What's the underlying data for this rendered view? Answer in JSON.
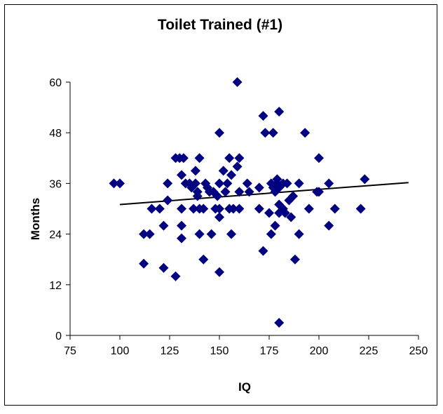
{
  "chart_data": {
    "type": "scatter",
    "title": "Toilet Trained (#1)",
    "xlabel": "IQ",
    "ylabel": "Months",
    "xlim": [
      75,
      250
    ],
    "ylim": [
      0,
      60
    ],
    "xticks": [
      75,
      100,
      125,
      150,
      175,
      200,
      225,
      250
    ],
    "yticks": [
      0,
      12,
      24,
      36,
      48,
      60
    ],
    "grid": false,
    "legend": "none",
    "marker": "diamond",
    "marker_color": "#000080",
    "trendline": {
      "type": "linear",
      "x": [
        100,
        245
      ],
      "y": [
        31,
        36.2
      ],
      "color": "#000000"
    },
    "points": [
      {
        "x": 97,
        "y": 36
      },
      {
        "x": 100,
        "y": 36
      },
      {
        "x": 112,
        "y": 24
      },
      {
        "x": 112,
        "y": 17
      },
      {
        "x": 115,
        "y": 24
      },
      {
        "x": 116,
        "y": 30
      },
      {
        "x": 120,
        "y": 30
      },
      {
        "x": 122,
        "y": 26
      },
      {
        "x": 122,
        "y": 16
      },
      {
        "x": 124,
        "y": 32
      },
      {
        "x": 124,
        "y": 36
      },
      {
        "x": 128,
        "y": 42
      },
      {
        "x": 128,
        "y": 14
      },
      {
        "x": 130,
        "y": 42
      },
      {
        "x": 131,
        "y": 38
      },
      {
        "x": 131,
        "y": 30
      },
      {
        "x": 131,
        "y": 26
      },
      {
        "x": 131,
        "y": 23
      },
      {
        "x": 132,
        "y": 42
      },
      {
        "x": 133,
        "y": 36
      },
      {
        "x": 135,
        "y": 36
      },
      {
        "x": 136,
        "y": 35
      },
      {
        "x": 137,
        "y": 30
      },
      {
        "x": 138,
        "y": 39
      },
      {
        "x": 138,
        "y": 36
      },
      {
        "x": 139,
        "y": 34
      },
      {
        "x": 139,
        "y": 33
      },
      {
        "x": 140,
        "y": 42
      },
      {
        "x": 140,
        "y": 30
      },
      {
        "x": 140,
        "y": 24
      },
      {
        "x": 142,
        "y": 30
      },
      {
        "x": 142,
        "y": 18
      },
      {
        "x": 143,
        "y": 36
      },
      {
        "x": 144,
        "y": 35
      },
      {
        "x": 145,
        "y": 34
      },
      {
        "x": 146,
        "y": 24
      },
      {
        "x": 147,
        "y": 34
      },
      {
        "x": 148,
        "y": 30
      },
      {
        "x": 149,
        "y": 33
      },
      {
        "x": 150,
        "y": 48
      },
      {
        "x": 150,
        "y": 36
      },
      {
        "x": 150,
        "y": 30
      },
      {
        "x": 150,
        "y": 28
      },
      {
        "x": 150,
        "y": 15
      },
      {
        "x": 152,
        "y": 39
      },
      {
        "x": 153,
        "y": 34
      },
      {
        "x": 154,
        "y": 36
      },
      {
        "x": 155,
        "y": 42
      },
      {
        "x": 155,
        "y": 30
      },
      {
        "x": 156,
        "y": 38
      },
      {
        "x": 156,
        "y": 24
      },
      {
        "x": 157,
        "y": 30
      },
      {
        "x": 159,
        "y": 60
      },
      {
        "x": 159,
        "y": 40
      },
      {
        "x": 160,
        "y": 42
      },
      {
        "x": 160,
        "y": 34
      },
      {
        "x": 160,
        "y": 30
      },
      {
        "x": 164,
        "y": 36
      },
      {
        "x": 165,
        "y": 34
      },
      {
        "x": 170,
        "y": 35
      },
      {
        "x": 170,
        "y": 30
      },
      {
        "x": 172,
        "y": 52
      },
      {
        "x": 172,
        "y": 20
      },
      {
        "x": 173,
        "y": 48
      },
      {
        "x": 175,
        "y": 29
      },
      {
        "x": 176,
        "y": 36
      },
      {
        "x": 176,
        "y": 24
      },
      {
        "x": 177,
        "y": 48
      },
      {
        "x": 177,
        "y": 35
      },
      {
        "x": 178,
        "y": 34
      },
      {
        "x": 178,
        "y": 26
      },
      {
        "x": 179,
        "y": 37
      },
      {
        "x": 179,
        "y": 36
      },
      {
        "x": 180,
        "y": 53
      },
      {
        "x": 180,
        "y": 35
      },
      {
        "x": 180,
        "y": 31
      },
      {
        "x": 180,
        "y": 29
      },
      {
        "x": 180,
        "y": 3
      },
      {
        "x": 182,
        "y": 36
      },
      {
        "x": 182,
        "y": 30
      },
      {
        "x": 183,
        "y": 29
      },
      {
        "x": 184,
        "y": 36
      },
      {
        "x": 185,
        "y": 32
      },
      {
        "x": 186,
        "y": 28
      },
      {
        "x": 187,
        "y": 33
      },
      {
        "x": 188,
        "y": 18
      },
      {
        "x": 190,
        "y": 36
      },
      {
        "x": 190,
        "y": 24
      },
      {
        "x": 193,
        "y": 48
      },
      {
        "x": 195,
        "y": 30
      },
      {
        "x": 199,
        "y": 34
      },
      {
        "x": 200,
        "y": 42
      },
      {
        "x": 200,
        "y": 34
      },
      {
        "x": 205,
        "y": 36
      },
      {
        "x": 205,
        "y": 26
      },
      {
        "x": 208,
        "y": 30
      },
      {
        "x": 221,
        "y": 30
      },
      {
        "x": 223,
        "y": 37
      }
    ]
  }
}
